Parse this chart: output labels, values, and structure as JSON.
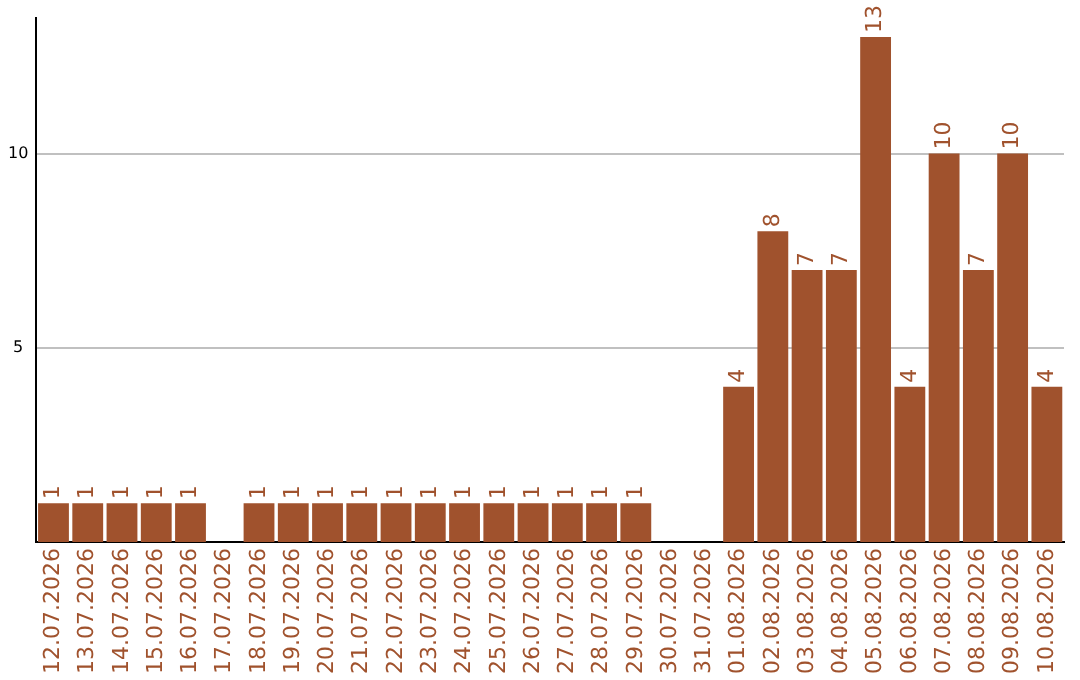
{
  "chart_data": {
    "type": "bar",
    "categories": [
      "12.07.2026",
      "13.07.2026",
      "14.07.2026",
      "15.07.2026",
      "16.07.2026",
      "17.07.2026",
      "18.07.2026",
      "19.07.2026",
      "20.07.2026",
      "21.07.2026",
      "22.07.2026",
      "23.07.2026",
      "24.07.2026",
      "25.07.2026",
      "26.07.2026",
      "27.07.2026",
      "28.07.2026",
      "29.07.2026",
      "30.07.2026",
      "31.07.2026",
      "01.08.2026",
      "02.08.2026",
      "03.08.2026",
      "04.08.2026",
      "05.08.2026",
      "06.08.2026",
      "07.08.2026",
      "08.08.2026",
      "09.08.2026",
      "10.08.2026"
    ],
    "values": [
      1,
      1,
      1,
      1,
      1,
      null,
      1,
      1,
      1,
      1,
      1,
      1,
      1,
      1,
      1,
      1,
      1,
      1,
      null,
      null,
      4,
      8,
      7,
      7,
      13,
      4,
      10,
      7,
      10,
      4
    ],
    "color": "#a0522d",
    "ylim": [
      0,
      13.5
    ],
    "yticks": [
      5,
      10
    ],
    "grid": "y",
    "data_labels": true,
    "legend": false
  }
}
